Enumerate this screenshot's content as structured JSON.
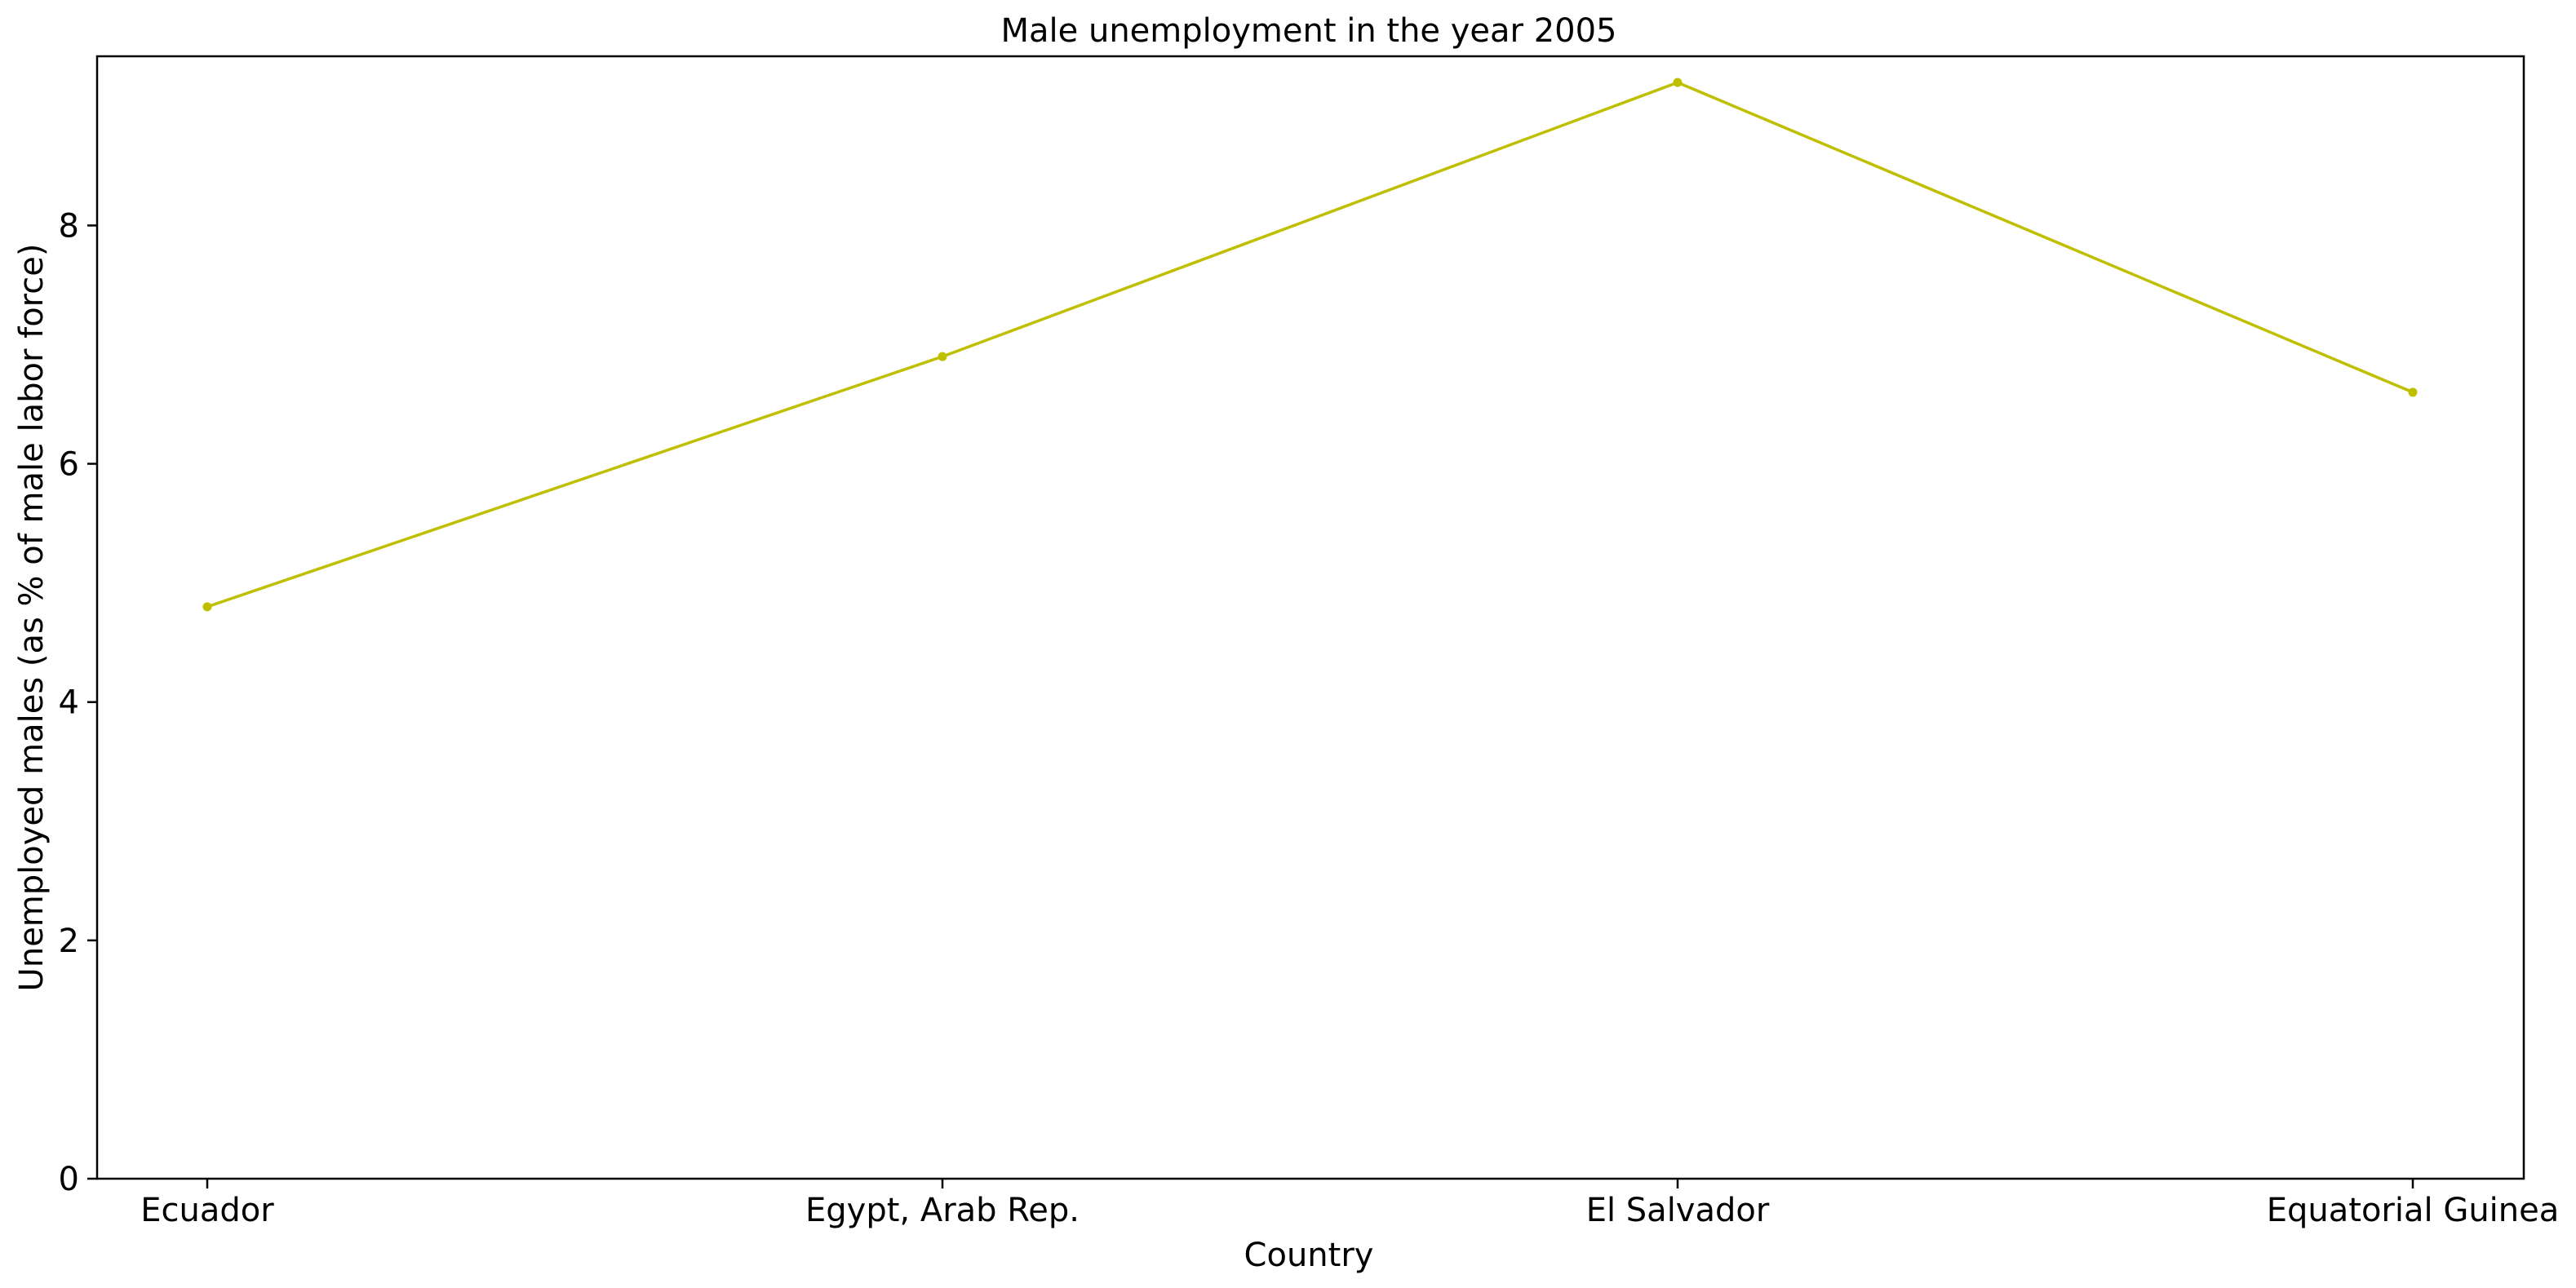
{
  "chart_data": {
    "type": "line",
    "title": "Male unemployment in the year 2005",
    "xlabel": "Country",
    "ylabel": "Unemployed males (as % of male labor force)",
    "categories": [
      "Ecuador",
      "Egypt, Arab Rep.",
      "El Salvador",
      "Equatorial Guinea"
    ],
    "series": [
      {
        "values": [
          4.8,
          6.9,
          9.2,
          6.6
        ],
        "color": "#bfbf00",
        "marker": "circle"
      }
    ],
    "ylim": [
      0,
      9.42
    ],
    "yticks": [
      0,
      2,
      4,
      6,
      8
    ],
    "grid": false,
    "legend": "none"
  }
}
